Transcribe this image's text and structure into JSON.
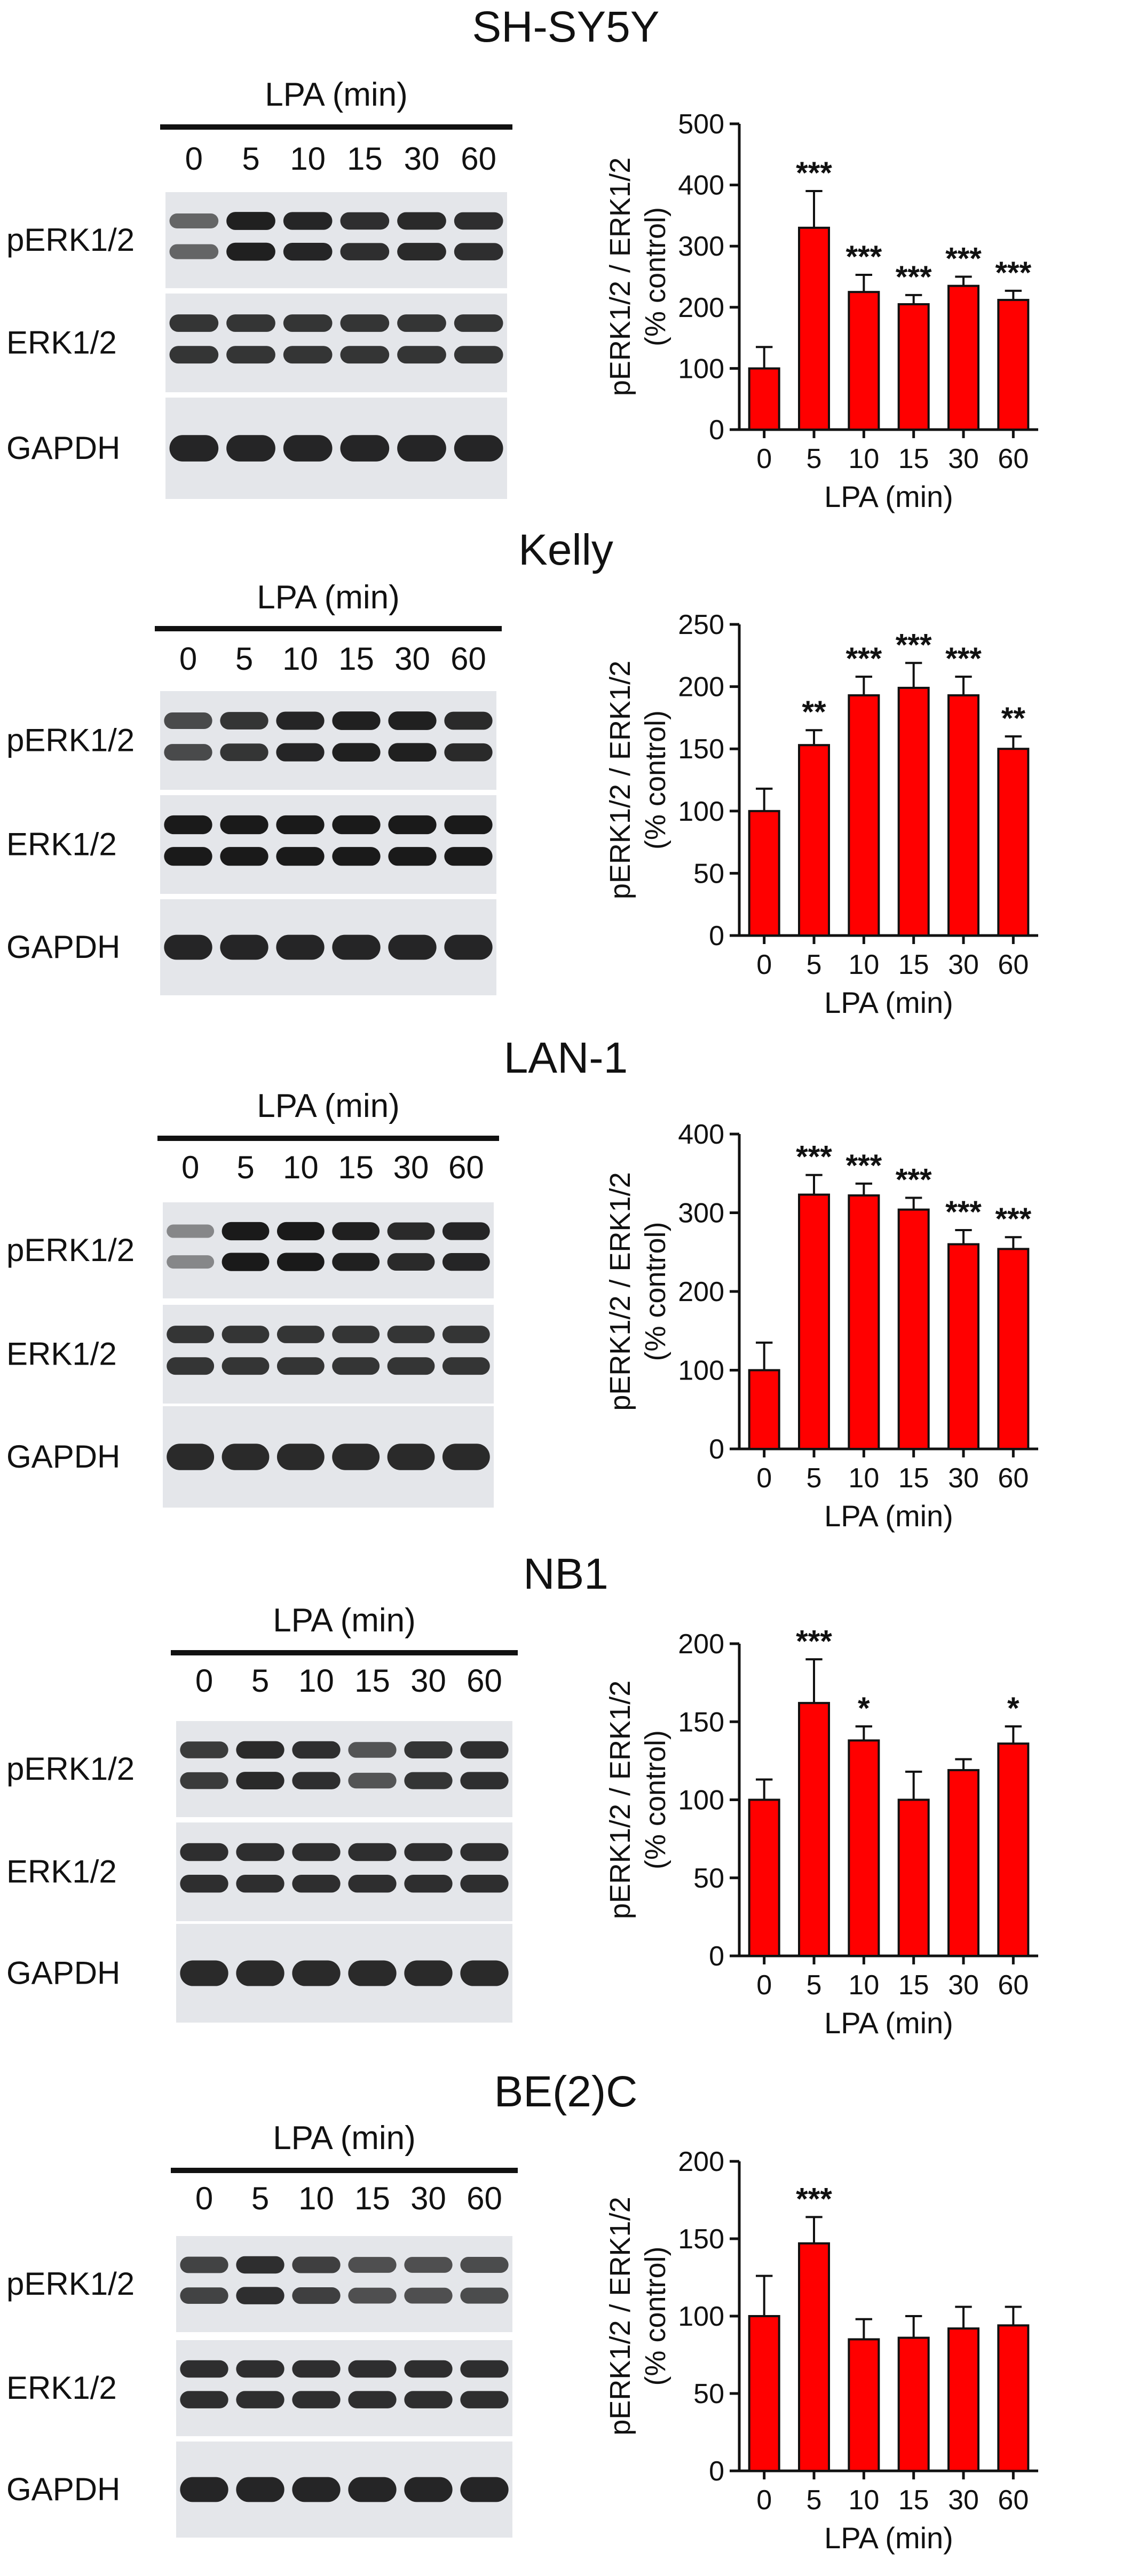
{
  "colors": {
    "bar": "#ff0000",
    "bar_outline": "#111111",
    "axis": "#111111",
    "blot_background": "#e4e6ea",
    "band": "#151515"
  },
  "panels": [
    {
      "cell_line": "SH-SY5Y",
      "blot": {
        "treatment_label": "LPA (min)",
        "lanes": [
          "0",
          "5",
          "10",
          "15",
          "30",
          "60"
        ],
        "rows": [
          {
            "label": "pERK1/2",
            "bands": 2,
            "intensity": [
              0.62,
              0.95,
              0.92,
              0.88,
              0.9,
              0.88
            ]
          },
          {
            "label": "ERK1/2",
            "bands": 2,
            "intensity": [
              0.85,
              0.85,
              0.85,
              0.85,
              0.85,
              0.85
            ]
          },
          {
            "label": "GAPDH",
            "bands": 1,
            "intensity": [
              0.92,
              0.92,
              0.92,
              0.92,
              0.92,
              0.92
            ]
          }
        ]
      },
      "chart_data": {
        "type": "bar",
        "categories": [
          "0",
          "5",
          "10",
          "15",
          "30",
          "60"
        ],
        "values": [
          100,
          330,
          225,
          205,
          235,
          212
        ],
        "errors": [
          35,
          60,
          28,
          15,
          15,
          15
        ],
        "significance": [
          "",
          "***",
          "***",
          "***",
          "***",
          "***"
        ],
        "ylabel": "pERK1/2 / ERK1/2\n(% control)",
        "xlabel": "LPA (min)",
        "ylim": [
          0,
          500
        ],
        "yticks": [
          0,
          100,
          200,
          300,
          400,
          500
        ]
      }
    },
    {
      "cell_line": "Kelly",
      "blot": {
        "treatment_label": "LPA (min)",
        "lanes": [
          "0",
          "5",
          "10",
          "15",
          "30",
          "60"
        ],
        "rows": [
          {
            "label": "pERK1/2",
            "bands": 2,
            "intensity": [
              0.75,
              0.85,
              0.92,
              0.95,
              0.95,
              0.9
            ]
          },
          {
            "label": "ERK1/2",
            "bands": 2,
            "intensity": [
              0.98,
              0.98,
              0.98,
              0.98,
              0.98,
              0.98
            ]
          },
          {
            "label": "GAPDH",
            "bands": 1,
            "intensity": [
              0.92,
              0.92,
              0.92,
              0.92,
              0.92,
              0.92
            ]
          }
        ]
      },
      "chart_data": {
        "type": "bar",
        "categories": [
          "0",
          "5",
          "10",
          "15",
          "30",
          "60"
        ],
        "values": [
          100,
          153,
          193,
          199,
          193,
          150
        ],
        "errors": [
          18,
          12,
          15,
          20,
          15,
          10
        ],
        "significance": [
          "",
          "**",
          "***",
          "***",
          "***",
          "**"
        ],
        "ylabel": "pERK1/2 / ERK1/2\n(% control)",
        "xlabel": "LPA (min)",
        "ylim": [
          0,
          250
        ],
        "yticks": [
          0,
          50,
          100,
          150,
          200,
          250
        ]
      }
    },
    {
      "cell_line": "LAN-1",
      "blot": {
        "treatment_label": "LPA (min)",
        "lanes": [
          "0",
          "5",
          "10",
          "15",
          "30",
          "60"
        ],
        "rows": [
          {
            "label": "pERK1/2",
            "bands": 2,
            "intensity": [
              0.45,
              0.98,
              0.98,
              0.95,
              0.9,
              0.92
            ]
          },
          {
            "label": "ERK1/2",
            "bands": 2,
            "intensity": [
              0.85,
              0.85,
              0.85,
              0.85,
              0.85,
              0.85
            ]
          },
          {
            "label": "GAPDH",
            "bands": 1,
            "intensity": [
              0.9,
              0.9,
              0.9,
              0.9,
              0.9,
              0.9
            ]
          }
        ]
      },
      "chart_data": {
        "type": "bar",
        "categories": [
          "0",
          "5",
          "10",
          "15",
          "30",
          "60"
        ],
        "values": [
          100,
          323,
          322,
          304,
          260,
          254
        ],
        "errors": [
          35,
          25,
          15,
          15,
          18,
          15
        ],
        "significance": [
          "",
          "***",
          "***",
          "***",
          "***",
          "***"
        ],
        "ylabel": "pERK1/2 / ERK1/2\n(% control)",
        "xlabel": "LPA (min)",
        "ylim": [
          0,
          400
        ],
        "yticks": [
          0,
          100,
          200,
          300,
          400
        ]
      }
    },
    {
      "cell_line": "NB1",
      "blot": {
        "treatment_label": "LPA (min)",
        "lanes": [
          "0",
          "5",
          "10",
          "15",
          "30",
          "60"
        ],
        "rows": [
          {
            "label": "pERK1/2",
            "bands": 2,
            "intensity": [
              0.82,
              0.9,
              0.88,
              0.7,
              0.85,
              0.88
            ]
          },
          {
            "label": "ERK1/2",
            "bands": 2,
            "intensity": [
              0.88,
              0.88,
              0.88,
              0.88,
              0.88,
              0.88
            ]
          },
          {
            "label": "GAPDH",
            "bands": 1,
            "intensity": [
              0.9,
              0.9,
              0.9,
              0.9,
              0.9,
              0.9
            ]
          }
        ]
      },
      "chart_data": {
        "type": "bar",
        "categories": [
          "0",
          "5",
          "10",
          "15",
          "30",
          "60"
        ],
        "values": [
          100,
          162,
          138,
          100,
          119,
          136
        ],
        "errors": [
          13,
          28,
          9,
          18,
          7,
          11
        ],
        "significance": [
          "",
          "***",
          "*",
          "",
          "",
          "*"
        ],
        "ylabel": "pERK1/2 / ERK1/2\n(% control)",
        "xlabel": "LPA (min)",
        "ylim": [
          0,
          200
        ],
        "yticks": [
          0,
          50,
          100,
          150,
          200
        ]
      }
    },
    {
      "cell_line": "BE(2)C",
      "blot": {
        "treatment_label": "LPA (min)",
        "lanes": [
          "0",
          "5",
          "10",
          "15",
          "30",
          "60"
        ],
        "rows": [
          {
            "label": "pERK1/2",
            "bands": 2,
            "intensity": [
              0.78,
              0.88,
              0.8,
              0.72,
              0.72,
              0.74
            ]
          },
          {
            "label": "ERK1/2",
            "bands": 2,
            "intensity": [
              0.88,
              0.88,
              0.88,
              0.88,
              0.88,
              0.88
            ]
          },
          {
            "label": "GAPDH",
            "bands": 1,
            "intensity": [
              0.92,
              0.92,
              0.92,
              0.92,
              0.92,
              0.92
            ]
          }
        ]
      },
      "chart_data": {
        "type": "bar",
        "categories": [
          "0",
          "5",
          "10",
          "15",
          "30",
          "60"
        ],
        "values": [
          100,
          147,
          85,
          86,
          92,
          94
        ],
        "errors": [
          26,
          17,
          13,
          14,
          14,
          12
        ],
        "significance": [
          "",
          "***",
          "",
          "",
          "",
          ""
        ],
        "ylabel": "pERK1/2 / ERK1/2\n(% control)",
        "xlabel": "LPA (min)",
        "ylim": [
          0,
          200
        ],
        "yticks": [
          0,
          50,
          100,
          150,
          200
        ]
      }
    }
  ]
}
